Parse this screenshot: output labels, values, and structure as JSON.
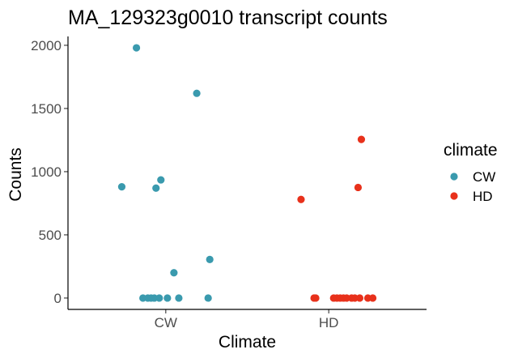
{
  "chart_data": {
    "type": "scatter",
    "title": "MA_129323g0010 transcript counts",
    "xlabel": "Climate",
    "ylabel": "Counts",
    "categories": [
      "CW",
      "HD"
    ],
    "yticks": [
      0,
      500,
      1000,
      1500,
      2000
    ],
    "ylim": [
      -90,
      2070
    ],
    "grid": false,
    "legend": {
      "title": "climate",
      "position": "right",
      "entries": [
        {
          "label": "CW",
          "color": "#3a9aae"
        },
        {
          "label": "HD",
          "color": "#e8311b"
        }
      ]
    },
    "series": [
      {
        "name": "CW",
        "color": "#3a9aae",
        "points": [
          {
            "x": 0.73,
            "y": 880
          },
          {
            "x": 0.82,
            "y": 1980
          },
          {
            "x": 0.86,
            "y": 0
          },
          {
            "x": 0.89,
            "y": 0
          },
          {
            "x": 0.91,
            "y": 0
          },
          {
            "x": 0.93,
            "y": 0
          },
          {
            "x": 0.94,
            "y": 870
          },
          {
            "x": 0.96,
            "y": 0
          },
          {
            "x": 0.97,
            "y": 935
          },
          {
            "x": 1.01,
            "y": 0
          },
          {
            "x": 1.05,
            "y": 200
          },
          {
            "x": 1.08,
            "y": 0
          },
          {
            "x": 1.19,
            "y": 1620
          },
          {
            "x": 1.26,
            "y": 0
          },
          {
            "x": 1.27,
            "y": 305
          }
        ]
      },
      {
        "name": "HD",
        "color": "#e8311b",
        "points": [
          {
            "x": 1.83,
            "y": 780
          },
          {
            "x": 1.91,
            "y": 0
          },
          {
            "x": 1.92,
            "y": 0
          },
          {
            "x": 2.03,
            "y": 0
          },
          {
            "x": 2.05,
            "y": 0
          },
          {
            "x": 2.07,
            "y": 0
          },
          {
            "x": 2.09,
            "y": 0
          },
          {
            "x": 2.11,
            "y": 0
          },
          {
            "x": 2.14,
            "y": 0
          },
          {
            "x": 2.16,
            "y": 0
          },
          {
            "x": 2.18,
            "y": 875
          },
          {
            "x": 2.19,
            "y": 0
          },
          {
            "x": 2.2,
            "y": 1255
          },
          {
            "x": 2.24,
            "y": 0
          },
          {
            "x": 2.27,
            "y": 0
          }
        ]
      }
    ]
  }
}
